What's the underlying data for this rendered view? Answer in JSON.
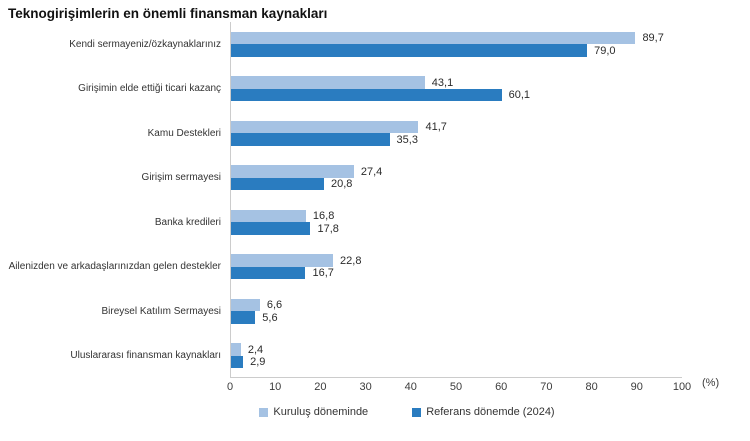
{
  "page": {
    "background": "#ffffff"
  },
  "chart_data": {
    "type": "bar",
    "orientation": "horizontal",
    "title": "Teknogirişimlerin en önemli finansman kaynakları",
    "unit_label": "(%)",
    "xlabel": "",
    "ylabel": "",
    "xlim": [
      0,
      100
    ],
    "x_ticks": [
      0,
      10,
      20,
      30,
      40,
      50,
      60,
      70,
      80,
      90,
      100
    ],
    "grid": false,
    "legend_position": "bottom",
    "axis_color": "#cccccc",
    "text_color": "#333333",
    "categories": [
      "Kendi sermayeniz/özkaynaklarınız",
      "Girişimin elde ettiği ticari kazanç",
      "Kamu Destekleri",
      "Girişim sermayesi",
      "Banka kredileri",
      "Ailenizden ve arkadaşlarınızdan gelen destekler",
      "Bireysel Katılım Sermayesi",
      "Uluslararası finansman kaynakları"
    ],
    "series": [
      {
        "name": "Kuruluş döneminde",
        "color": "#a5c2e3",
        "values": [
          89.7,
          43.1,
          41.7,
          27.4,
          16.8,
          22.8,
          6.6,
          2.4
        ],
        "value_labels": [
          "89,7",
          "43,1",
          "41,7",
          "27,4",
          "16,8",
          "22,8",
          "6,6",
          "2,4"
        ]
      },
      {
        "name": "Referans dönemde (2024)",
        "color": "#2a7cc0",
        "values": [
          79.0,
          60.1,
          35.3,
          20.8,
          17.8,
          16.7,
          5.6,
          2.9
        ],
        "value_labels": [
          "79,0",
          "60,1",
          "35,3",
          "20,8",
          "17,8",
          "16,7",
          "5,6",
          "2,9"
        ]
      }
    ]
  }
}
